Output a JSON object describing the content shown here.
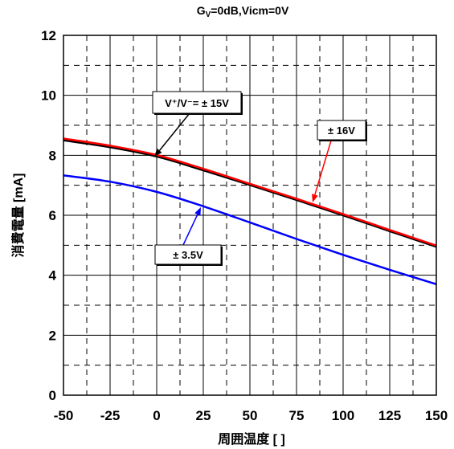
{
  "chart_data": {
    "type": "line",
    "title": {
      "main": "G",
      "subscript": "V",
      "rest": "=0dB,Vicm=0V"
    },
    "xlabel": "周囲温度 [ ]",
    "ylabel": "消費電量 [mA]",
    "xlim": [
      -50,
      150
    ],
    "ylim": [
      0,
      12
    ],
    "xticks": [
      -50,
      -25,
      0,
      25,
      50,
      75,
      100,
      125,
      150
    ],
    "yticks": [
      0,
      2,
      4,
      6,
      8,
      10,
      12
    ],
    "grid": true,
    "minor_grid": true,
    "x": [
      -50,
      -25,
      0,
      25,
      50,
      75,
      100,
      125,
      150
    ],
    "series": [
      {
        "name": "V⁺/V⁻= ± 15V",
        "color": "#000000",
        "values": [
          8.5,
          8.27,
          7.96,
          7.5,
          7.01,
          6.51,
          6.0,
          5.47,
          4.95
        ]
      },
      {
        "name": "± 16V",
        "color": "#ff0000",
        "values": [
          8.56,
          8.32,
          8.01,
          7.55,
          7.05,
          6.55,
          6.04,
          5.51,
          4.99
        ]
      },
      {
        "name": "± 3.5V",
        "color": "#0000ff",
        "values": [
          7.33,
          7.12,
          6.78,
          6.3,
          5.76,
          5.21,
          4.68,
          4.18,
          3.7
        ]
      }
    ]
  }
}
